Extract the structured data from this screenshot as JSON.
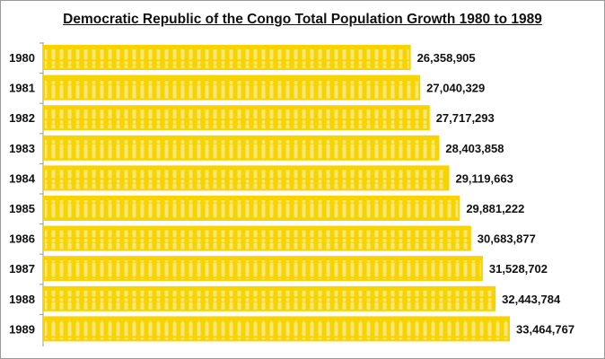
{
  "chart_data": {
    "type": "bar",
    "orientation": "horizontal",
    "title": "Democratic Republic of the Congo Total Population Growth 1980 to 1989",
    "categories": [
      "1980",
      "1981",
      "1982",
      "1983",
      "1984",
      "1985",
      "1986",
      "1987",
      "1988",
      "1989"
    ],
    "values": [
      26358905,
      27040329,
      27717293,
      28403858,
      29119663,
      29881222,
      30683877,
      31528702,
      32443784,
      33464767
    ],
    "data_labels": [
      "26,358,905",
      "27,040,329",
      "27,717,293",
      "28,403,858",
      "29,119,663",
      "29,881,222",
      "30,683,877",
      "31,528,702",
      "32,443,784",
      "33,464,767"
    ],
    "xlim": [
      0,
      33464767
    ],
    "grid": false,
    "legend": "none",
    "colors": {
      "bar": "#f7d300",
      "bar_pattern": "#fbe67a",
      "text": "#111111"
    }
  }
}
